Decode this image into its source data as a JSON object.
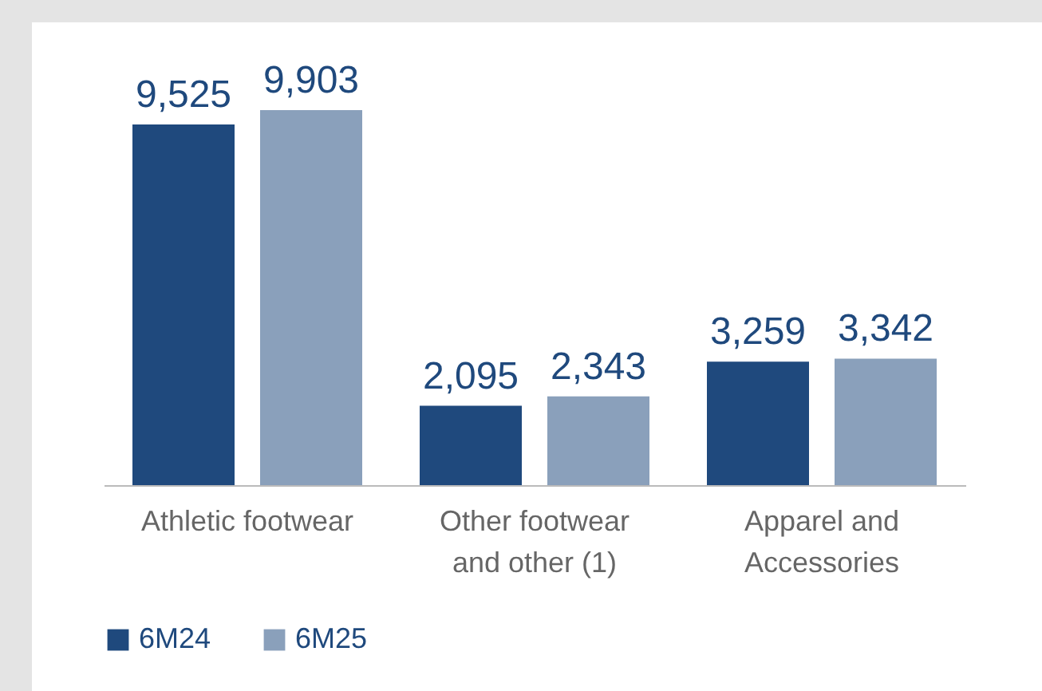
{
  "chart_data": {
    "type": "bar",
    "categories": [
      "Athletic footwear",
      "Other footwear and other (1)",
      "Apparel and Accessories"
    ],
    "series": [
      {
        "name": "6M24",
        "color": "#1f497d",
        "values": [
          9525,
          2095,
          3259
        ],
        "value_labels": [
          "9,525",
          "2,095",
          "3,259"
        ]
      },
      {
        "name": "6M25",
        "color": "#8aa0bb",
        "values": [
          9903,
          2343,
          3342
        ],
        "value_labels": [
          "9,903",
          "2,343",
          "3,342"
        ]
      }
    ],
    "legend": "bottom"
  }
}
